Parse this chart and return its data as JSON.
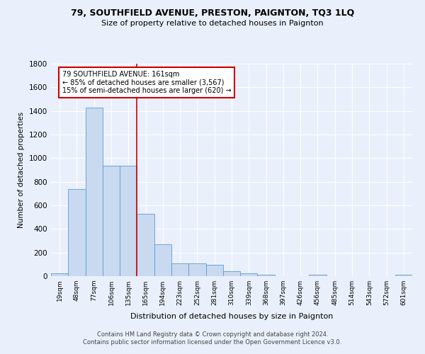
{
  "title1": "79, SOUTHFIELD AVENUE, PRESTON, PAIGNTON, TQ3 1LQ",
  "title2": "Size of property relative to detached houses in Paignton",
  "xlabel": "Distribution of detached houses by size in Paignton",
  "ylabel": "Number of detached properties",
  "bin_labels": [
    "19sqm",
    "48sqm",
    "77sqm",
    "106sqm",
    "135sqm",
    "165sqm",
    "194sqm",
    "223sqm",
    "252sqm",
    "281sqm",
    "310sqm",
    "339sqm",
    "368sqm",
    "397sqm",
    "426sqm",
    "456sqm",
    "485sqm",
    "514sqm",
    "543sqm",
    "572sqm",
    "601sqm"
  ],
  "bar_heights": [
    22,
    740,
    1430,
    935,
    935,
    530,
    270,
    110,
    110,
    95,
    42,
    22,
    14,
    0,
    0,
    14,
    0,
    0,
    0,
    0,
    14
  ],
  "bar_color": "#c9d9f0",
  "bar_edge_color": "#5b9bd5",
  "annotation_title": "79 SOUTHFIELD AVENUE: 161sqm",
  "annotation_line1": "← 85% of detached houses are smaller (3,567)",
  "annotation_line2": "15% of semi-detached houses are larger (620) →",
  "redline_bin_index": 5,
  "ylim": [
    0,
    1800
  ],
  "yticks": [
    0,
    200,
    400,
    600,
    800,
    1000,
    1200,
    1400,
    1600,
    1800
  ],
  "footer1": "Contains HM Land Registry data © Crown copyright and database right 2024.",
  "footer2": "Contains public sector information licensed under the Open Government Licence v3.0.",
  "bg_color": "#eaf0fb"
}
